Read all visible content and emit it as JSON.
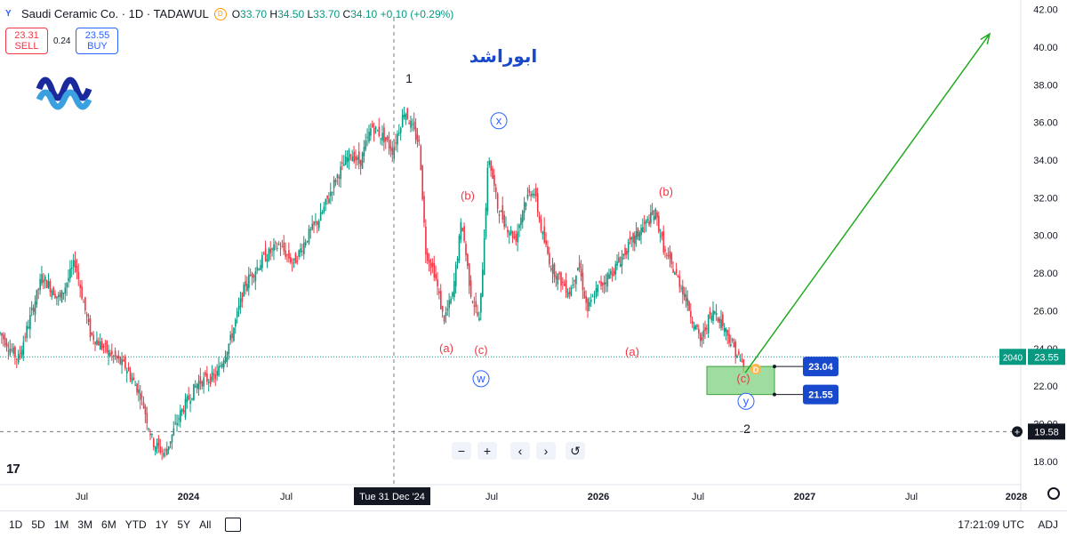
{
  "legend": {
    "symbol_text": "Saudi Ceramic Co. · 1D · TADAWUL",
    "symbol_icon": "ceramic-logo-icon",
    "flag_letter": "D",
    "o_label": "O",
    "o_value": "33.70",
    "h_label": "H",
    "h_value": "34.50",
    "l_label": "L",
    "l_value": "33.70",
    "c_label": "C",
    "c_value": "34.10",
    "change": "+0.10 (+0.29%)"
  },
  "trade": {
    "sell_price": "23.31",
    "sell_label": "SELL",
    "spread": "0.24",
    "buy_price": "23.55",
    "buy_label": "BUY"
  },
  "watermark": "ابوراشد",
  "colors": {
    "up": "#089981",
    "down": "#f23645",
    "wave_black": "#131722",
    "wave_red": "#f23645",
    "wave_blue": "#2962ff",
    "target_line": "#22ab22",
    "zone_fill": "#7fd07f",
    "label_box": "#1848cc"
  },
  "chart_data": {
    "type": "candlestick",
    "symbol": "Saudi Ceramic Co.",
    "interval": "1D",
    "exchange": "TADAWUL",
    "ylim": [
      17.0,
      42.5
    ],
    "y_ticks": [
      "18.00",
      "20.00",
      "22.00",
      "24.00",
      "26.00",
      "28.00",
      "30.00",
      "32.00",
      "34.00",
      "36.00",
      "38.00",
      "40.00",
      "42.00"
    ],
    "x_ticks": [
      "Jul",
      "2024",
      "Jul",
      "Tue 31 Dec '24",
      "Jul",
      "2026",
      "Jul",
      "2027",
      "Jul",
      "2028"
    ],
    "crosshair_x_label": "Tue 31 Dec '24",
    "price_path": [
      {
        "t": 0.0,
        "p": 24.8
      },
      {
        "t": 0.03,
        "p": 23.4
      },
      {
        "t": 0.07,
        "p": 27.8
      },
      {
        "t": 0.1,
        "p": 26.6
      },
      {
        "t": 0.125,
        "p": 28.6
      },
      {
        "t": 0.15,
        "p": 24.8
      },
      {
        "t": 0.18,
        "p": 23.8
      },
      {
        "t": 0.21,
        "p": 23.0
      },
      {
        "t": 0.235,
        "p": 21.5
      },
      {
        "t": 0.255,
        "p": 19.0
      },
      {
        "t": 0.275,
        "p": 18.4
      },
      {
        "t": 0.3,
        "p": 20.5
      },
      {
        "t": 0.33,
        "p": 22.2
      },
      {
        "t": 0.36,
        "p": 22.5
      },
      {
        "t": 0.385,
        "p": 24.5
      },
      {
        "t": 0.41,
        "p": 27.5
      },
      {
        "t": 0.44,
        "p": 28.8
      },
      {
        "t": 0.465,
        "p": 29.5
      },
      {
        "t": 0.49,
        "p": 28.5
      },
      {
        "t": 0.51,
        "p": 29.8
      },
      {
        "t": 0.535,
        "p": 31.0
      },
      {
        "t": 0.56,
        "p": 33.0
      },
      {
        "t": 0.585,
        "p": 34.4
      },
      {
        "t": 0.6,
        "p": 33.8
      },
      {
        "t": 0.62,
        "p": 35.8
      },
      {
        "t": 0.64,
        "p": 35.2
      },
      {
        "t": 0.655,
        "p": 34.5
      },
      {
        "t": 0.675,
        "p": 36.7
      },
      {
        "t": 0.69,
        "p": 35.5
      },
      {
        "t": 0.7,
        "p": 34.8
      },
      {
        "t": 0.71,
        "p": 29.2
      },
      {
        "t": 0.725,
        "p": 28.0
      },
      {
        "t": 0.74,
        "p": 25.5
      },
      {
        "t": 0.755,
        "p": 26.8
      },
      {
        "t": 0.77,
        "p": 30.8
      },
      {
        "t": 0.785,
        "p": 27.0
      },
      {
        "t": 0.8,
        "p": 25.4
      },
      {
        "t": 0.815,
        "p": 34.3
      },
      {
        "t": 0.83,
        "p": 31.5
      },
      {
        "t": 0.845,
        "p": 30.5
      },
      {
        "t": 0.86,
        "p": 29.8
      },
      {
        "t": 0.875,
        "p": 31.8
      },
      {
        "t": 0.89,
        "p": 32.5
      },
      {
        "t": 0.905,
        "p": 30.0
      },
      {
        "t": 0.92,
        "p": 28.3
      },
      {
        "t": 0.935,
        "p": 27.6
      },
      {
        "t": 0.95,
        "p": 27.0
      },
      {
        "t": 0.965,
        "p": 28.5
      },
      {
        "t": 0.98,
        "p": 26.0
      },
      {
        "t": 1.0,
        "p": 27.4
      }
    ],
    "price_path_2": [
      {
        "t": 0.0,
        "p": 27.4
      },
      {
        "t": 0.1,
        "p": 28.3
      },
      {
        "t": 0.2,
        "p": 29.5
      },
      {
        "t": 0.3,
        "p": 30.5
      },
      {
        "t": 0.38,
        "p": 31.2
      },
      {
        "t": 0.45,
        "p": 29.0
      },
      {
        "t": 0.52,
        "p": 28.0
      },
      {
        "t": 0.58,
        "p": 27.0
      },
      {
        "t": 0.64,
        "p": 25.6
      },
      {
        "t": 0.7,
        "p": 24.3
      },
      {
        "t": 0.75,
        "p": 25.5
      },
      {
        "t": 0.8,
        "p": 26.0
      },
      {
        "t": 0.86,
        "p": 25.2
      },
      {
        "t": 0.92,
        "p": 24.2
      },
      {
        "t": 1.0,
        "p": 23.0
      }
    ],
    "wave_labels": [
      {
        "text": "1",
        "p": 38.1,
        "color": "black"
      },
      {
        "text": "x",
        "p": 35.9,
        "color": "blue",
        "circled": true
      },
      {
        "text": "(b)",
        "p": 31.9,
        "color": "red"
      },
      {
        "text": "(b)",
        "p": 32.1,
        "color": "red"
      },
      {
        "text": "(a)",
        "p": 23.8,
        "color": "red"
      },
      {
        "text": "(c)",
        "p": 23.7,
        "color": "red"
      },
      {
        "text": "(a)",
        "p": 23.6,
        "color": "red"
      },
      {
        "text": "w",
        "p": 22.2,
        "color": "blue",
        "circled": true
      },
      {
        "text": "(c)",
        "p": 22.2,
        "color": "red"
      },
      {
        "text": "y",
        "p": 21.0,
        "color": "blue",
        "circled": true
      },
      {
        "text": "2",
        "p": 19.5,
        "color": "black"
      }
    ],
    "zone": {
      "top": 23.04,
      "bottom": 21.55
    },
    "zone_labels": [
      "23.04",
      "21.55"
    ],
    "target": {
      "from": 22.7,
      "to": 40.7
    },
    "current_price": "23.55",
    "current_price_countdown": "2040",
    "crosshair_price": "19.58",
    "crosshair_price_value": 19.58
  },
  "nav": {
    "zoom_out": "−",
    "zoom_in": "+",
    "back": "‹",
    "forward": "›",
    "reset": "↺"
  },
  "bottom": {
    "ranges": [
      "1D",
      "5D",
      "1M",
      "3M",
      "6M",
      "YTD",
      "1Y",
      "5Y",
      "All"
    ],
    "clock": "17:21:09 UTC",
    "adj": "ADJ"
  },
  "tv_logo": "17"
}
